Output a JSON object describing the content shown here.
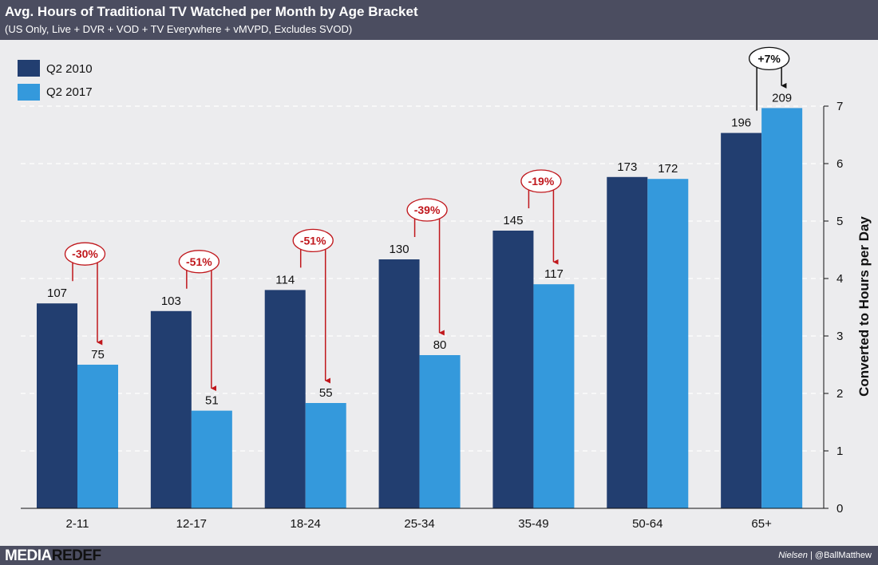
{
  "header": {
    "title": "Avg. Hours of Traditional TV Watched per Month by Age Bracket",
    "subtitle": "(US Only, Live + DVR + VOD + TV Everywhere + vMVPD, Excludes SVOD)"
  },
  "footer": {
    "brand_a": "MEDIA",
    "brand_b": "REDEF",
    "source": "Nielsen",
    "separator": "|",
    "handle": "@BallMatthew"
  },
  "colors": {
    "q2_2010": "#223e70",
    "q2_2017": "#3499dc",
    "change_negative": "#c0171c",
    "change_positive": "#111111"
  },
  "chart_data": {
    "type": "bar",
    "categories": [
      "2-11",
      "12-17",
      "18-24",
      "25-34",
      "35-49",
      "50-64",
      "65+"
    ],
    "series": [
      {
        "name": "Q2 2010",
        "values": [
          107,
          103,
          114,
          130,
          145,
          173,
          196
        ]
      },
      {
        "name": "Q2 2017",
        "values": [
          75,
          51,
          55,
          80,
          117,
          172,
          209
        ]
      }
    ],
    "changes": [
      "-30%",
      "-51%",
      "-51%",
      "-39%",
      "-19%",
      null,
      "+7%"
    ],
    "ylabel": "Converted to Hours per Day",
    "yticks": [
      0,
      1,
      2,
      3,
      4,
      5,
      6,
      7
    ],
    "ylim": [
      0,
      7
    ],
    "days_per_month": 30,
    "legend_position": "top-left",
    "grid": true
  }
}
